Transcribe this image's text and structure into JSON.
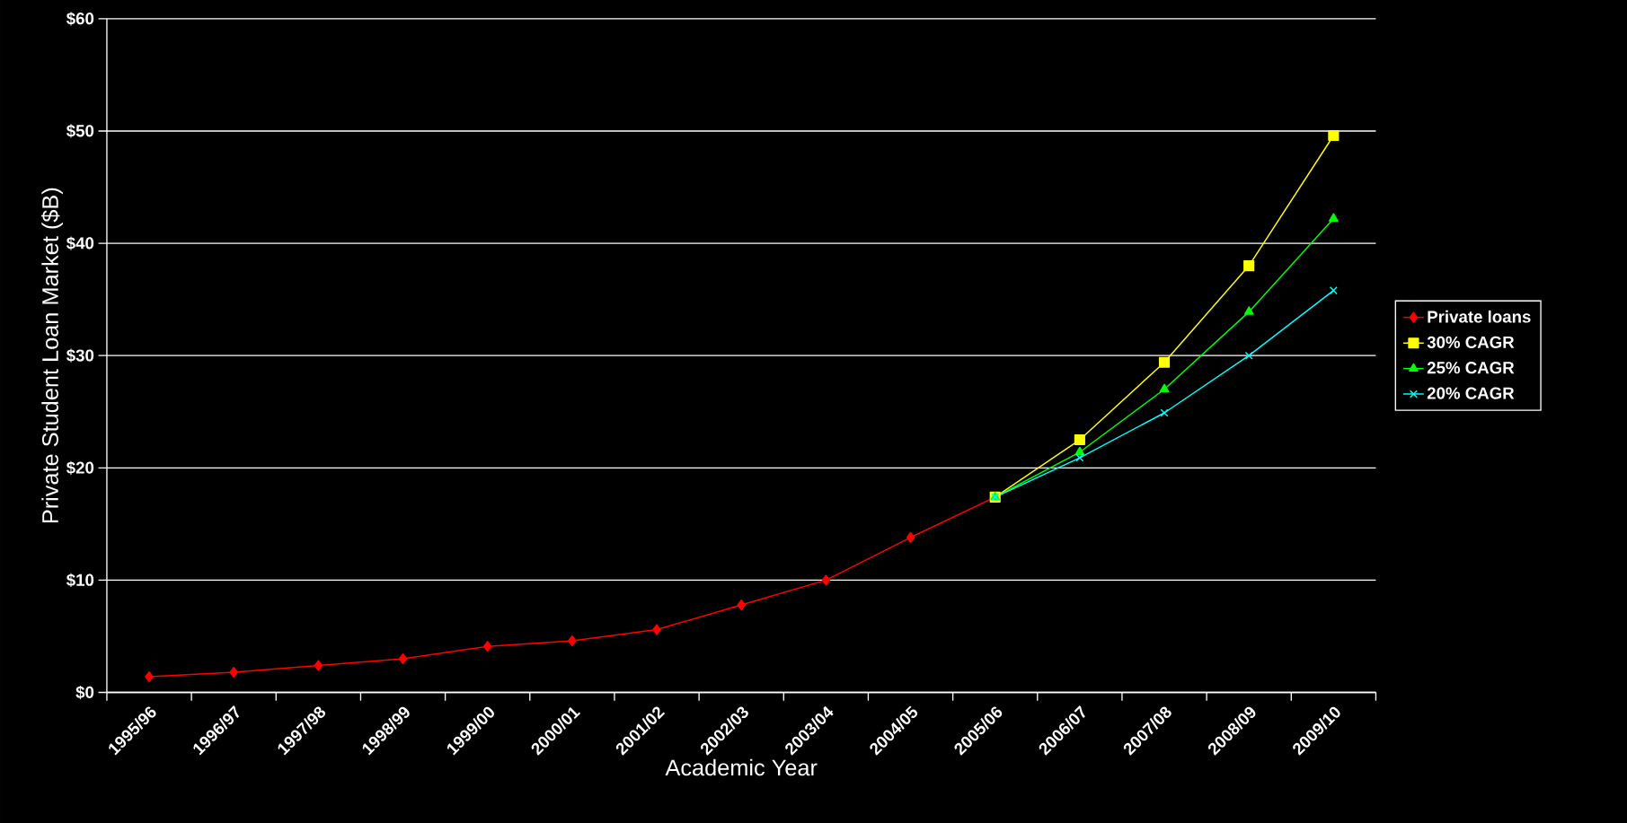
{
  "chart_data": {
    "type": "line",
    "xlabel": "Academic Year",
    "ylabel": "Private Student Loan Market ($B)",
    "categories": [
      "1995/96",
      "1996/97",
      "1997/98",
      "1998/99",
      "1999/00",
      "2000/01",
      "2001/02",
      "2002/03",
      "2003/04",
      "2004/05",
      "2005/06",
      "2006/07",
      "2007/08",
      "2008/09",
      "2009/10"
    ],
    "series": [
      {
        "name": "Private loans",
        "color": "#ff0000",
        "marker": "diamond",
        "values": [
          1.4,
          1.8,
          2.4,
          3.0,
          4.1,
          4.6,
          5.6,
          7.8,
          10.0,
          13.8,
          17.4,
          null,
          null,
          null,
          null
        ]
      },
      {
        "name": "30% CAGR",
        "color": "#ffff00",
        "marker": "square",
        "values": [
          null,
          null,
          null,
          null,
          null,
          null,
          null,
          null,
          null,
          null,
          17.4,
          22.5,
          29.4,
          38.0,
          49.6
        ]
      },
      {
        "name": "25% CAGR",
        "color": "#00ff00",
        "marker": "triangle",
        "values": [
          null,
          null,
          null,
          null,
          null,
          null,
          null,
          null,
          null,
          null,
          17.4,
          21.4,
          27.0,
          33.9,
          42.2
        ]
      },
      {
        "name": "20% CAGR",
        "color": "#00ffff",
        "marker": "cross",
        "values": [
          null,
          null,
          null,
          null,
          null,
          null,
          null,
          null,
          null,
          null,
          17.4,
          20.9,
          24.9,
          30.0,
          35.8
        ]
      }
    ],
    "ylim": [
      0,
      60
    ],
    "yticks": [
      {
        "value": 0,
        "label": "$0"
      },
      {
        "value": 10,
        "label": "$10"
      },
      {
        "value": 20,
        "label": "$20"
      },
      {
        "value": 30,
        "label": "$30"
      },
      {
        "value": 40,
        "label": "$40"
      },
      {
        "value": 50,
        "label": "$50"
      },
      {
        "value": 60,
        "label": "$60"
      }
    ],
    "grid": "y",
    "legend": "right"
  }
}
